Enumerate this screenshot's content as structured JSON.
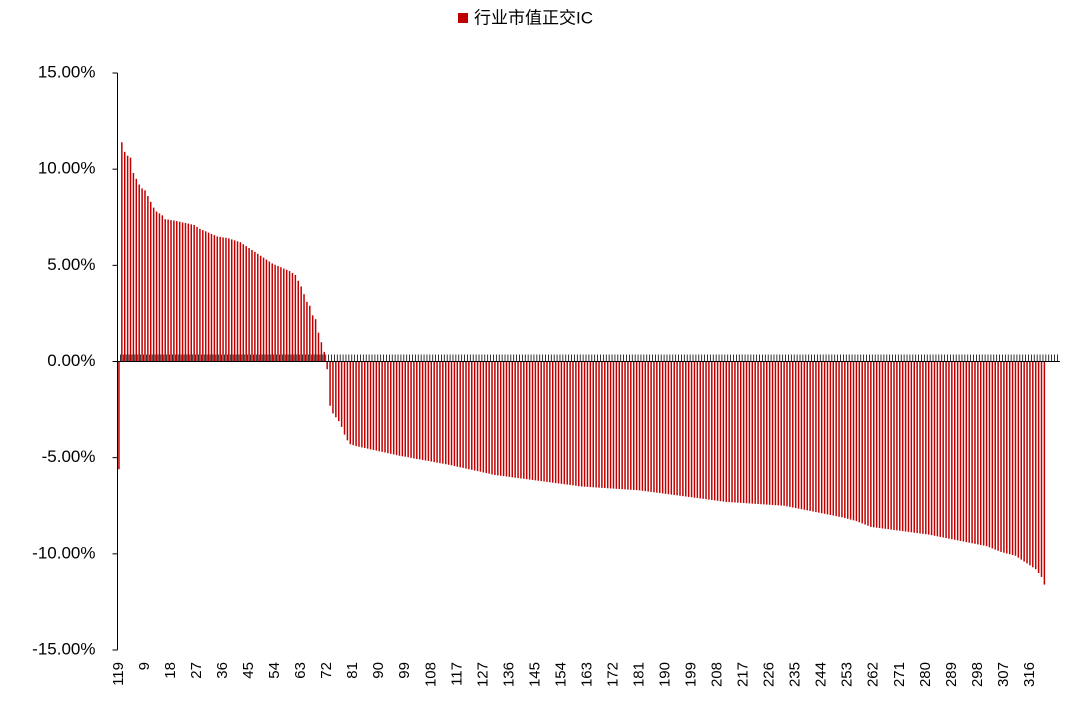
{
  "chart_data": {
    "type": "bar",
    "legend": "top",
    "ylim": [
      -15,
      15
    ],
    "yticks": [
      {
        "value": -15,
        "label": "-15.00%"
      },
      {
        "value": -10,
        "label": "-10.00%"
      },
      {
        "value": -5,
        "label": "-5.00%"
      },
      {
        "value": 0,
        "label": "0.00%"
      },
      {
        "value": 5,
        "label": "5.00%"
      },
      {
        "value": 10,
        "label": "10.00%"
      },
      {
        "value": 15,
        "label": "15.00%"
      }
    ],
    "categories": [
      "119",
      null,
      null,
      null,
      null,
      null,
      null,
      null,
      null,
      "9",
      null,
      null,
      null,
      null,
      null,
      null,
      null,
      null,
      "18",
      null,
      null,
      null,
      null,
      null,
      null,
      null,
      null,
      "27",
      null,
      null,
      null,
      null,
      null,
      null,
      null,
      null,
      "36",
      null,
      null,
      null,
      null,
      null,
      null,
      null,
      null,
      "45",
      null,
      null,
      null,
      null,
      null,
      null,
      null,
      null,
      "54",
      null,
      null,
      null,
      null,
      null,
      null,
      null,
      null,
      "63",
      null,
      null,
      null,
      null,
      null,
      null,
      null,
      null,
      "72",
      null,
      null,
      null,
      null,
      null,
      null,
      null,
      null,
      "81",
      null,
      null,
      null,
      null,
      null,
      null,
      null,
      null,
      "90",
      null,
      null,
      null,
      null,
      null,
      null,
      null,
      null,
      "99",
      null,
      null,
      null,
      null,
      null,
      null,
      null,
      null,
      "108",
      null,
      null,
      null,
      null,
      null,
      null,
      null,
      null,
      "117",
      null,
      null,
      null,
      null,
      null,
      null,
      null,
      null,
      "127",
      null,
      null,
      null,
      null,
      null,
      null,
      null,
      null,
      "136",
      null,
      null,
      null,
      null,
      null,
      null,
      null,
      null,
      "145",
      null,
      null,
      null,
      null,
      null,
      null,
      null,
      null,
      "154",
      null,
      null,
      null,
      null,
      null,
      null,
      null,
      null,
      "163",
      null,
      null,
      null,
      null,
      null,
      null,
      null,
      null,
      "172",
      null,
      null,
      null,
      null,
      null,
      null,
      null,
      null,
      "181",
      null,
      null,
      null,
      null,
      null,
      null,
      null,
      null,
      "190",
      null,
      null,
      null,
      null,
      null,
      null,
      null,
      null,
      "199",
      null,
      null,
      null,
      null,
      null,
      null,
      null,
      null,
      "208",
      null,
      null,
      null,
      null,
      null,
      null,
      null,
      null,
      "217",
      null,
      null,
      null,
      null,
      null,
      null,
      null,
      null,
      "226",
      null,
      null,
      null,
      null,
      null,
      null,
      null,
      null,
      "235",
      null,
      null,
      null,
      null,
      null,
      null,
      null,
      null,
      "244",
      null,
      null,
      null,
      null,
      null,
      null,
      null,
      null,
      "253",
      null,
      null,
      null,
      null,
      null,
      null,
      null,
      null,
      "262",
      null,
      null,
      null,
      null,
      null,
      null,
      null,
      null,
      "271",
      null,
      null,
      null,
      null,
      null,
      null,
      null,
      null,
      "280",
      null,
      null,
      null,
      null,
      null,
      null,
      null,
      null,
      "289",
      null,
      null,
      null,
      null,
      null,
      null,
      null,
      null,
      "298",
      null,
      null,
      null,
      null,
      null,
      null,
      null,
      null,
      "307",
      null,
      null,
      null,
      null,
      null,
      null,
      null,
      null,
      "316",
      null,
      null,
      null,
      null,
      null
    ],
    "series": [
      {
        "name": "行业市值正交IC",
        "color": "#c00000",
        "values": [
          -5.6,
          11.4,
          10.9,
          10.7,
          10.6,
          9.8,
          9.5,
          9.2,
          9.0,
          8.9,
          8.6,
          8.3,
          8.0,
          7.8,
          7.7,
          7.6,
          7.4,
          7.38,
          7.35,
          7.33,
          7.3,
          7.27,
          7.23,
          7.2,
          7.17,
          7.13,
          7.1,
          7.0,
          6.9,
          6.83,
          6.77,
          6.7,
          6.63,
          6.57,
          6.5,
          6.48,
          6.45,
          6.43,
          6.4,
          6.35,
          6.3,
          6.25,
          6.2,
          6.1,
          6.0,
          5.9,
          5.8,
          5.7,
          5.6,
          5.5,
          5.4,
          5.3,
          5.2,
          5.1,
          5.03,
          4.97,
          4.9,
          4.83,
          4.77,
          4.7,
          4.6,
          4.5,
          4.2,
          3.9,
          3.5,
          3.1,
          2.9,
          2.4,
          2.2,
          1.5,
          1.0,
          0.5,
          -0.4,
          -2.3,
          -2.7,
          -2.9,
          -3.1,
          -3.4,
          -3.8,
          -4.1,
          -4.3,
          -4.35,
          -4.4,
          -4.43,
          -4.47,
          -4.5,
          -4.53,
          -4.57,
          -4.6,
          -4.63,
          -4.67,
          -4.7,
          -4.73,
          -4.77,
          -4.8,
          -4.83,
          -4.87,
          -4.9,
          -4.93,
          -4.95,
          -4.98,
          -5.01,
          -5.04,
          -5.07,
          -5.09,
          -5.12,
          -5.15,
          -5.17,
          -5.2,
          -5.23,
          -5.26,
          -5.29,
          -5.31,
          -5.34,
          -5.37,
          -5.4,
          -5.43,
          -5.47,
          -5.5,
          -5.53,
          -5.57,
          -5.6,
          -5.63,
          -5.67,
          -5.7,
          -5.73,
          -5.77,
          -5.8,
          -5.83,
          -5.87,
          -5.9,
          -5.92,
          -5.94,
          -5.96,
          -5.98,
          -6.0,
          -6.02,
          -6.04,
          -6.06,
          -6.08,
          -6.1,
          -6.12,
          -6.14,
          -6.16,
          -6.18,
          -6.2,
          -6.22,
          -6.24,
          -6.26,
          -6.28,
          -6.3,
          -6.32,
          -6.34,
          -6.36,
          -6.38,
          -6.4,
          -6.42,
          -6.44,
          -6.46,
          -6.48,
          -6.5,
          -6.51,
          -6.52,
          -6.53,
          -6.54,
          -6.55,
          -6.56,
          -6.57,
          -6.58,
          -6.59,
          -6.6,
          -6.61,
          -6.62,
          -6.63,
          -6.64,
          -6.65,
          -6.66,
          -6.67,
          -6.68,
          -6.69,
          -6.7,
          -6.72,
          -6.74,
          -6.76,
          -6.78,
          -6.8,
          -6.82,
          -6.84,
          -6.86,
          -6.88,
          -6.9,
          -6.92,
          -6.94,
          -6.96,
          -6.98,
          -7.0,
          -7.02,
          -7.04,
          -7.06,
          -7.08,
          -7.1,
          -7.12,
          -7.14,
          -7.16,
          -7.18,
          -7.2,
          -7.22,
          -7.24,
          -7.26,
          -7.28,
          -7.3,
          -7.31,
          -7.32,
          -7.33,
          -7.34,
          -7.35,
          -7.36,
          -7.37,
          -7.38,
          -7.39,
          -7.4,
          -7.41,
          -7.42,
          -7.43,
          -7.44,
          -7.45,
          -7.46,
          -7.47,
          -7.48,
          -7.49,
          -7.5,
          -7.53,
          -7.56,
          -7.59,
          -7.62,
          -7.65,
          -7.68,
          -7.71,
          -7.74,
          -7.77,
          -7.8,
          -7.83,
          -7.86,
          -7.89,
          -7.92,
          -7.95,
          -7.98,
          -8.01,
          -8.04,
          -8.07,
          -8.1,
          -8.14,
          -8.18,
          -8.22,
          -8.26,
          -8.3,
          -8.36,
          -8.42,
          -8.48,
          -8.54,
          -8.6,
          -8.62,
          -8.64,
          -8.66,
          -8.68,
          -8.7,
          -8.72,
          -8.74,
          -8.76,
          -8.78,
          -8.8,
          -8.82,
          -8.84,
          -8.86,
          -8.88,
          -8.9,
          -8.92,
          -8.94,
          -8.96,
          -8.98,
          -9.0,
          -9.03,
          -9.06,
          -9.09,
          -9.12,
          -9.15,
          -9.18,
          -9.21,
          -9.24,
          -9.27,
          -9.3,
          -9.33,
          -9.36,
          -9.39,
          -9.42,
          -9.45,
          -9.48,
          -9.51,
          -9.54,
          -9.57,
          -9.6,
          -9.66,
          -9.72,
          -9.78,
          -9.84,
          -9.9,
          -9.94,
          -9.98,
          -10.02,
          -10.06,
          -10.1,
          -10.2,
          -10.3,
          -10.4,
          -10.5,
          -10.6,
          -10.7,
          -10.8,
          -11.0,
          -11.2,
          -11.6
        ]
      }
    ]
  }
}
